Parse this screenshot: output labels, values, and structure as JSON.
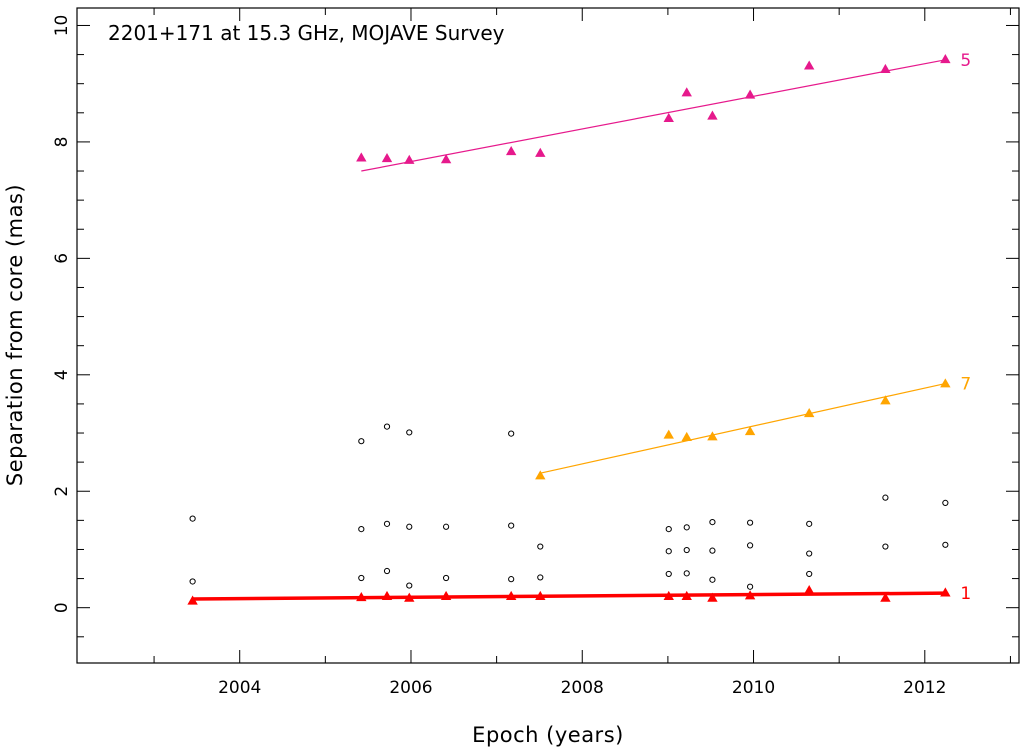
{
  "chart_data": {
    "type": "scatter",
    "title": "2201+171 at 15.3 GHz, MOJAVE Survey",
    "xlabel": "Epoch (years)",
    "ylabel": "Separation from core (mas)",
    "xlim": [
      2002.1,
      2013.1
    ],
    "ylim": [
      -0.95,
      10.3
    ],
    "x_ticks": [
      2004,
      2006,
      2008,
      2010,
      2012
    ],
    "x_tick_labels": [
      "2004",
      "2006",
      "2008",
      "2010",
      "2012"
    ],
    "y_ticks": [
      0,
      2,
      4,
      6,
      8,
      10
    ],
    "y_tick_labels": [
      "0",
      "2",
      "4",
      "6",
      "8",
      "10"
    ],
    "grid": false,
    "series": [
      {
        "name": "5",
        "color": "#e6198c",
        "marker": "triangle",
        "x": [
          2005.42,
          2005.72,
          2005.98,
          2006.41,
          2007.17,
          2007.51,
          2009.01,
          2009.22,
          2009.52,
          2009.96,
          2010.65,
          2011.54,
          2012.24
        ],
        "y": [
          7.73,
          7.72,
          7.69,
          7.7,
          7.84,
          7.81,
          8.41,
          8.85,
          8.45,
          8.81,
          9.31,
          9.25,
          9.42
        ],
        "fit": {
          "x": [
            2005.42,
            2012.24
          ],
          "y": [
            7.5,
            9.41
          ]
        }
      },
      {
        "name": "7",
        "color": "#ffa500",
        "marker": "triangle",
        "x": [
          2007.51,
          2009.01,
          2009.22,
          2009.52,
          2009.96,
          2010.65,
          2011.54,
          2012.24
        ],
        "y": [
          2.27,
          2.97,
          2.93,
          2.94,
          3.03,
          3.34,
          3.56,
          3.85
        ],
        "fit": {
          "x": [
            2007.51,
            2012.24
          ],
          "y": [
            2.31,
            3.85
          ]
        }
      },
      {
        "name": "1",
        "color": "#ff0000",
        "marker": "triangle",
        "x": [
          2003.45,
          2005.42,
          2005.72,
          2005.98,
          2006.41,
          2007.17,
          2007.51,
          2009.01,
          2009.22,
          2009.52,
          2009.96,
          2010.65,
          2011.54,
          2012.24
        ],
        "y": [
          0.12,
          0.18,
          0.2,
          0.17,
          0.2,
          0.2,
          0.2,
          0.2,
          0.2,
          0.17,
          0.21,
          0.3,
          0.17,
          0.26
        ],
        "fit": {
          "x": [
            2003.45,
            2012.24
          ],
          "y": [
            0.15,
            0.25
          ]
        }
      },
      {
        "name": "",
        "color": "#000000",
        "marker": "open-circle",
        "x": [
          2003.45,
          2003.45,
          2005.42,
          2005.42,
          2005.42,
          2005.72,
          2005.72,
          2005.72,
          2005.98,
          2005.98,
          2005.98,
          2006.41,
          2006.41,
          2007.17,
          2007.17,
          2007.17,
          2007.51,
          2007.51,
          2009.01,
          2009.01,
          2009.01,
          2009.22,
          2009.22,
          2009.22,
          2009.52,
          2009.52,
          2009.52,
          2009.96,
          2009.96,
          2009.96,
          2010.65,
          2010.65,
          2010.65,
          2011.54,
          2011.54,
          2012.24,
          2012.24
        ],
        "y": [
          1.53,
          0.45,
          2.86,
          1.35,
          0.51,
          3.11,
          1.44,
          0.63,
          3.01,
          1.39,
          0.38,
          1.39,
          0.51,
          2.99,
          1.41,
          0.49,
          1.05,
          0.52,
          1.35,
          0.97,
          0.58,
          1.38,
          0.99,
          0.59,
          1.47,
          0.98,
          0.48,
          1.46,
          1.07,
          0.36,
          1.44,
          0.93,
          0.58,
          1.89,
          1.05,
          1.8,
          1.08
        ]
      }
    ]
  }
}
